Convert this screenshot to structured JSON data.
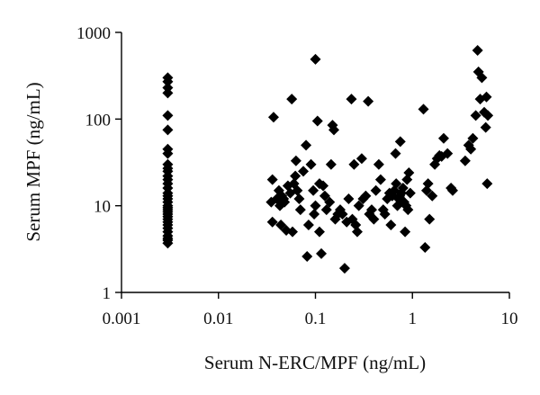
{
  "chart_data": {
    "type": "scatter",
    "xlabel": "Serum N-ERC/MPF (ng/mL)",
    "ylabel": "Serum MPF (ng/mL)",
    "xscale": "log",
    "yscale": "log",
    "xlim": [
      0.001,
      10
    ],
    "ylim": [
      1,
      1000
    ],
    "xticks": [
      "0.001",
      "0.01",
      "0.1",
      "1",
      "10"
    ],
    "yticks": [
      "1",
      "10",
      "100",
      "1000"
    ],
    "grid": false,
    "legend": "none",
    "marker": "diamond",
    "marker_color": "#000000",
    "series": [
      {
        "points": [
          [
            0.003,
            300
          ],
          [
            0.003,
            270
          ],
          [
            0.003,
            230
          ],
          [
            0.003,
            200
          ],
          [
            0.003,
            110
          ],
          [
            0.003,
            75
          ],
          [
            0.003,
            45
          ],
          [
            0.003,
            40
          ],
          [
            0.003,
            30
          ],
          [
            0.003,
            27
          ],
          [
            0.003,
            25
          ],
          [
            0.003,
            22
          ],
          [
            0.003,
            20
          ],
          [
            0.003,
            18
          ],
          [
            0.003,
            16
          ],
          [
            0.003,
            14
          ],
          [
            0.003,
            13
          ],
          [
            0.003,
            12
          ],
          [
            0.003,
            11
          ],
          [
            0.003,
            10
          ],
          [
            0.003,
            9.5
          ],
          [
            0.003,
            9
          ],
          [
            0.003,
            8.5
          ],
          [
            0.003,
            8
          ],
          [
            0.003,
            7.5
          ],
          [
            0.003,
            7
          ],
          [
            0.003,
            6.5
          ],
          [
            0.003,
            6
          ],
          [
            0.003,
            5.5
          ],
          [
            0.003,
            5
          ],
          [
            0.003,
            4.5
          ],
          [
            0.003,
            4.2
          ],
          [
            0.003,
            4
          ],
          [
            0.003,
            3.7
          ],
          [
            0.037,
            105
          ],
          [
            0.036,
            20
          ],
          [
            0.035,
            11
          ],
          [
            0.036,
            6.5
          ],
          [
            0.04,
            12
          ],
          [
            0.042,
            15
          ],
          [
            0.043,
            10
          ],
          [
            0.044,
            6
          ],
          [
            0.045,
            13
          ],
          [
            0.047,
            12
          ],
          [
            0.048,
            11
          ],
          [
            0.05,
            5.2
          ],
          [
            0.052,
            17
          ],
          [
            0.055,
            14
          ],
          [
            0.057,
            170
          ],
          [
            0.058,
            5
          ],
          [
            0.06,
            18
          ],
          [
            0.062,
            22
          ],
          [
            0.063,
            33
          ],
          [
            0.065,
            15
          ],
          [
            0.068,
            12
          ],
          [
            0.07,
            9
          ],
          [
            0.075,
            25
          ],
          [
            0.08,
            50
          ],
          [
            0.082,
            2.6
          ],
          [
            0.085,
            6
          ],
          [
            0.09,
            30
          ],
          [
            0.095,
            15
          ],
          [
            0.097,
            8
          ],
          [
            0.1,
            10
          ],
          [
            0.1,
            490
          ],
          [
            0.105,
            95
          ],
          [
            0.11,
            18
          ],
          [
            0.11,
            5
          ],
          [
            0.115,
            2.8
          ],
          [
            0.12,
            17
          ],
          [
            0.125,
            13
          ],
          [
            0.13,
            9
          ],
          [
            0.14,
            11
          ],
          [
            0.145,
            30
          ],
          [
            0.15,
            85
          ],
          [
            0.155,
            75
          ],
          [
            0.16,
            7
          ],
          [
            0.17,
            8
          ],
          [
            0.18,
            9
          ],
          [
            0.19,
            8
          ],
          [
            0.2,
            1.9
          ],
          [
            0.21,
            6.5
          ],
          [
            0.22,
            12
          ],
          [
            0.235,
            170
          ],
          [
            0.24,
            7
          ],
          [
            0.25,
            30
          ],
          [
            0.26,
            6
          ],
          [
            0.27,
            5
          ],
          [
            0.28,
            10
          ],
          [
            0.3,
            35
          ],
          [
            0.31,
            12
          ],
          [
            0.33,
            13
          ],
          [
            0.35,
            160
          ],
          [
            0.36,
            8
          ],
          [
            0.38,
            9
          ],
          [
            0.4,
            7
          ],
          [
            0.42,
            15
          ],
          [
            0.45,
            30
          ],
          [
            0.47,
            20
          ],
          [
            0.5,
            9
          ],
          [
            0.52,
            8
          ],
          [
            0.55,
            12
          ],
          [
            0.58,
            14
          ],
          [
            0.6,
            6
          ],
          [
            0.62,
            13
          ],
          [
            0.65,
            15
          ],
          [
            0.67,
            40
          ],
          [
            0.68,
            18
          ],
          [
            0.7,
            10
          ],
          [
            0.72,
            12
          ],
          [
            0.74,
            13
          ],
          [
            0.75,
            55
          ],
          [
            0.77,
            14
          ],
          [
            0.8,
            16
          ],
          [
            0.82,
            11
          ],
          [
            0.84,
            5
          ],
          [
            0.86,
            10
          ],
          [
            0.88,
            20
          ],
          [
            0.9,
            9
          ],
          [
            0.92,
            24
          ],
          [
            0.95,
            14
          ],
          [
            1.3,
            130
          ],
          [
            1.35,
            3.3
          ],
          [
            1.4,
            15
          ],
          [
            1.45,
            18
          ],
          [
            1.5,
            7
          ],
          [
            1.6,
            13
          ],
          [
            1.7,
            30
          ],
          [
            1.8,
            35
          ],
          [
            1.9,
            38
          ],
          [
            2.0,
            37
          ],
          [
            2.1,
            60
          ],
          [
            2.3,
            40
          ],
          [
            2.5,
            16
          ],
          [
            2.6,
            15
          ],
          [
            3.5,
            33
          ],
          [
            3.8,
            50
          ],
          [
            4.0,
            45
          ],
          [
            4.2,
            60
          ],
          [
            4.5,
            110
          ],
          [
            4.7,
            620
          ],
          [
            4.8,
            350
          ],
          [
            5.0,
            170
          ],
          [
            5.2,
            300
          ],
          [
            5.5,
            120
          ],
          [
            5.7,
            80
          ],
          [
            5.8,
            180
          ],
          [
            5.9,
            18
          ],
          [
            6.0,
            110
          ]
        ]
      }
    ]
  }
}
